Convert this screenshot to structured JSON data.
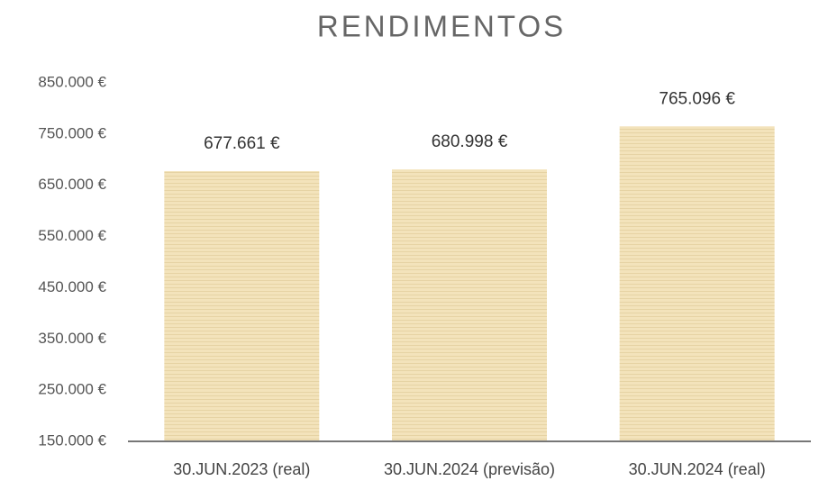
{
  "chart_data": {
    "type": "bar",
    "title": "RENDIMENTOS",
    "categories": [
      "30.JUN.2023 (real)",
      "30.JUN.2024 (previsão)",
      "30.JUN.2024 (real)"
    ],
    "values": [
      677661,
      680998,
      765096
    ],
    "value_labels": [
      "677.661 €",
      "680.998 €",
      "765.096 €"
    ],
    "color": "#f2e1b6",
    "ylim": [
      150000,
      850000
    ],
    "yticks": [
      {
        "value": 150000,
        "label": "150.000 €"
      },
      {
        "value": 250000,
        "label": "250.000 €"
      },
      {
        "value": 350000,
        "label": "350.000 €"
      },
      {
        "value": 450000,
        "label": "450.000 €"
      },
      {
        "value": 550000,
        "label": "550.000 €"
      },
      {
        "value": 650000,
        "label": "650.000 €"
      },
      {
        "value": 750000,
        "label": "750.000 €"
      },
      {
        "value": 850000,
        "label": "850.000 €"
      }
    ],
    "grid": false
  }
}
